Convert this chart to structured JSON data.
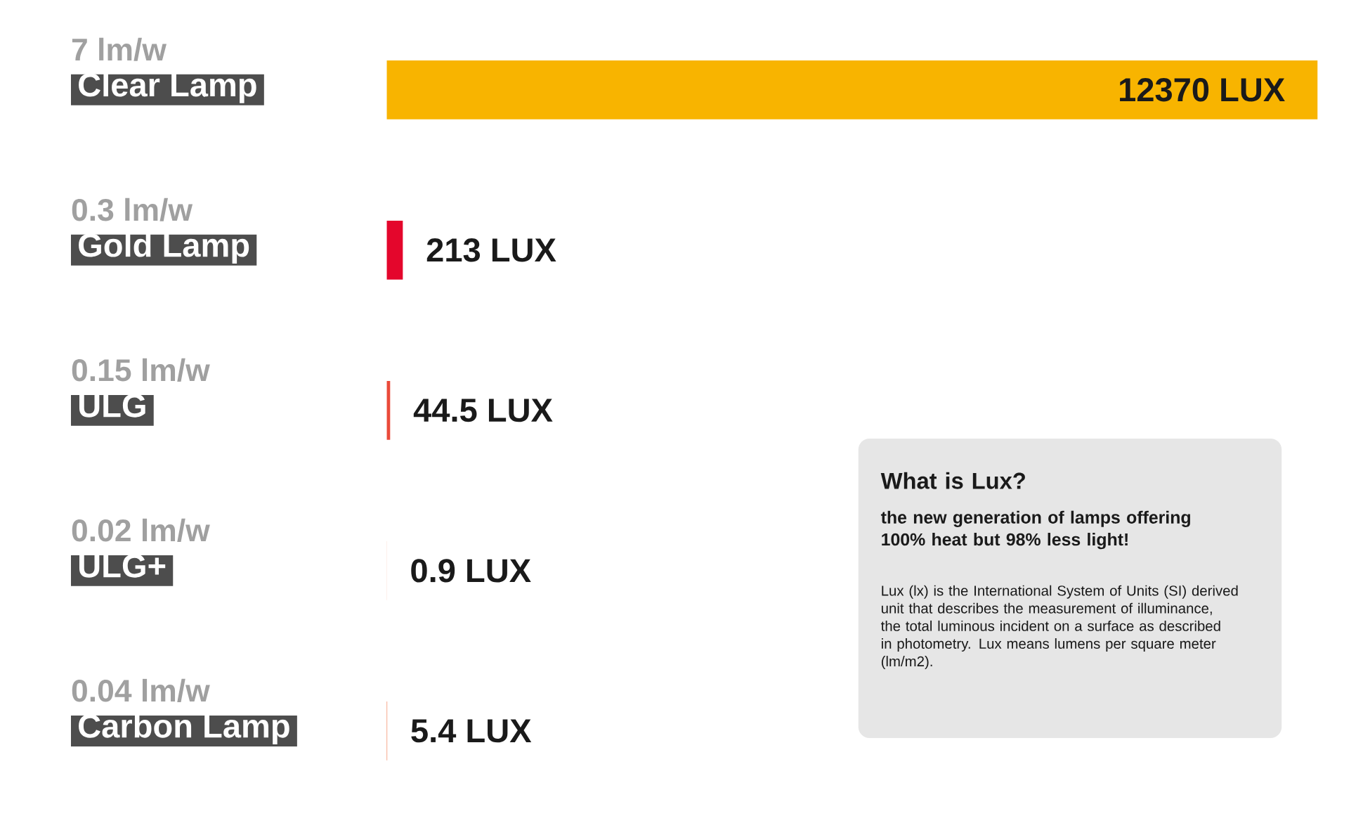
{
  "chart_data": {
    "type": "bar",
    "orientation": "horizontal",
    "categories": [
      "Clear Lamp",
      "Gold Lamp",
      "ULG",
      "ULG+",
      "Carbon Lamp"
    ],
    "values": [
      12370,
      213,
      44.5,
      0.9,
      5.4
    ],
    "colors": [
      "#f8b400",
      "#e4062c",
      "#ea4a3a",
      "#ef6a3c",
      "#ef6a3c"
    ],
    "value_labels": [
      "12370 LUX",
      "213 LUX",
      "44.5 LUX",
      "0.9 LUX",
      "5.4 LUX"
    ],
    "tick_labels": "y",
    "annotations": [
      "7 lm/w",
      "0.3 lm/w",
      "0.15 lm/w",
      "0.02 lm/w",
      "0.04 lm/w",
      "What is Lux?",
      "the new generation of lamps offering 100% heat but 98% less light!",
      "Lux (lx) is the International System of Units (SI) derived unit that describes the measurement of illuminance, the total luminous incident on a surface as described in photometry. Lux means lumens per square meter (lm/m2)."
    ]
  }
}
